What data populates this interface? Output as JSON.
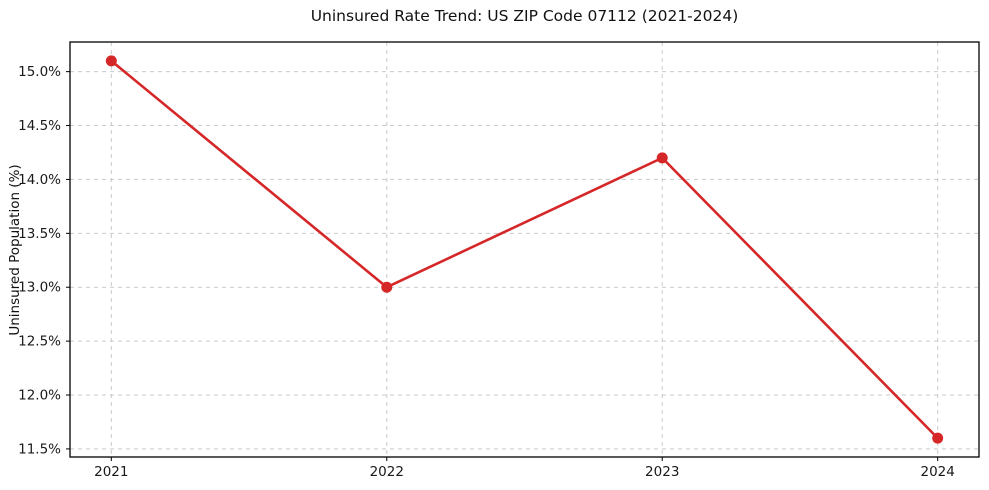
{
  "chart_data": {
    "type": "line",
    "title": "Uninsured Rate Trend: US ZIP Code 07112 (2021-2024)",
    "xlabel": "",
    "ylabel": "Uninsured Population (%)",
    "x": [
      2021,
      2022,
      2023,
      2024
    ],
    "values": [
      15.1,
      13.0,
      14.2,
      11.6
    ],
    "series_name": "Uninsured rate",
    "xlim": [
      2020.85,
      2024.15
    ],
    "ylim": [
      11.425,
      15.275
    ],
    "xticks": [
      2021,
      2022,
      2023,
      2024
    ],
    "xtick_labels": [
      "2021",
      "2022",
      "2023",
      "2024"
    ],
    "yticks": [
      11.5,
      12.0,
      12.5,
      13.0,
      13.5,
      14.0,
      14.5,
      15.0
    ],
    "ytick_labels": [
      "11.5%",
      "12.0%",
      "12.5%",
      "13.0%",
      "13.5%",
      "14.0%",
      "14.5%",
      "15.0%"
    ],
    "grid": true,
    "legend": "none",
    "line_color": "#d62728",
    "marker_color": "#d62728",
    "grid_color": "#c9c9c9",
    "background_color": "#ffffff",
    "marker_radius": 5.5
  }
}
